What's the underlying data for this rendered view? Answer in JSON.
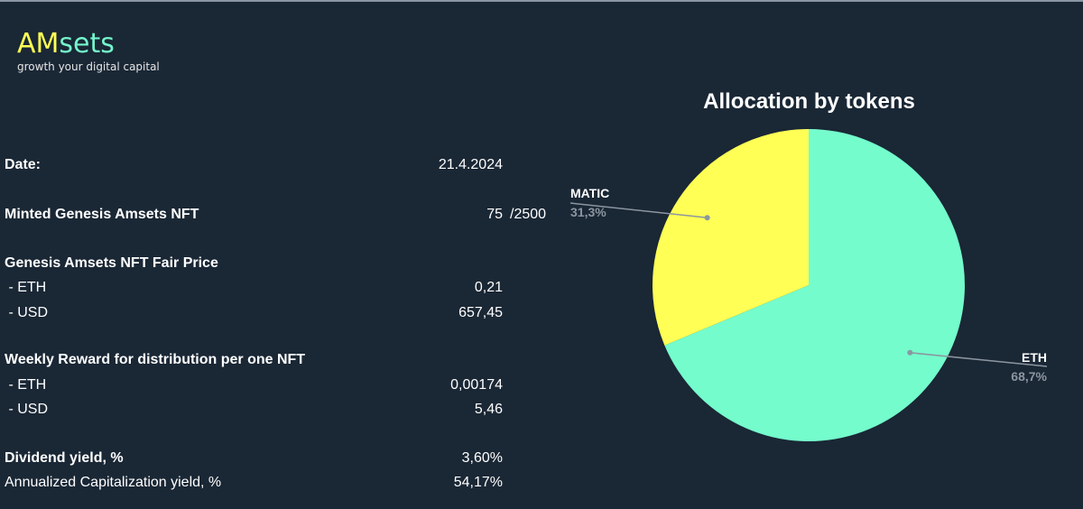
{
  "logo": {
    "am": "AM",
    "sets": "sets",
    "tagline": "growth your digital capital"
  },
  "rows": {
    "date": {
      "label": "Date:",
      "value": "21.4.2024"
    },
    "minted": {
      "label": "Minted Genesis Amsets NFT",
      "value": "75",
      "of": "/2500"
    },
    "fair_price": {
      "label": "Genesis Amsets NFT Fair Price"
    },
    "fair_eth": {
      "label": " - ETH",
      "value": "0,21"
    },
    "fair_usd": {
      "label": " - USD",
      "value": "657,45"
    },
    "weekly": {
      "label": "Weekly Reward for distribution per one NFT"
    },
    "weekly_eth": {
      "label": " - ETH",
      "value": "0,00174"
    },
    "weekly_usd": {
      "label": " - USD",
      "value": "5,46"
    },
    "dividend": {
      "label": "Dividend yield, %",
      "value": "3,60%"
    },
    "annualized": {
      "label": "Annualized Capitalization yield, %",
      "value": "54,17%"
    }
  },
  "colors": {
    "background": "#1a2735",
    "eth": "#74fccc",
    "matic": "#ffff55",
    "leader": "#8c96a0"
  },
  "chart_data": {
    "type": "pie",
    "title": "Allocation by tokens",
    "slices": [
      {
        "name": "ETH",
        "value": 68.7,
        "label": "68,7%",
        "color": "#74fccc"
      },
      {
        "name": "MATIC",
        "value": 31.3,
        "label": "31,3%",
        "color": "#ffff55"
      }
    ]
  }
}
